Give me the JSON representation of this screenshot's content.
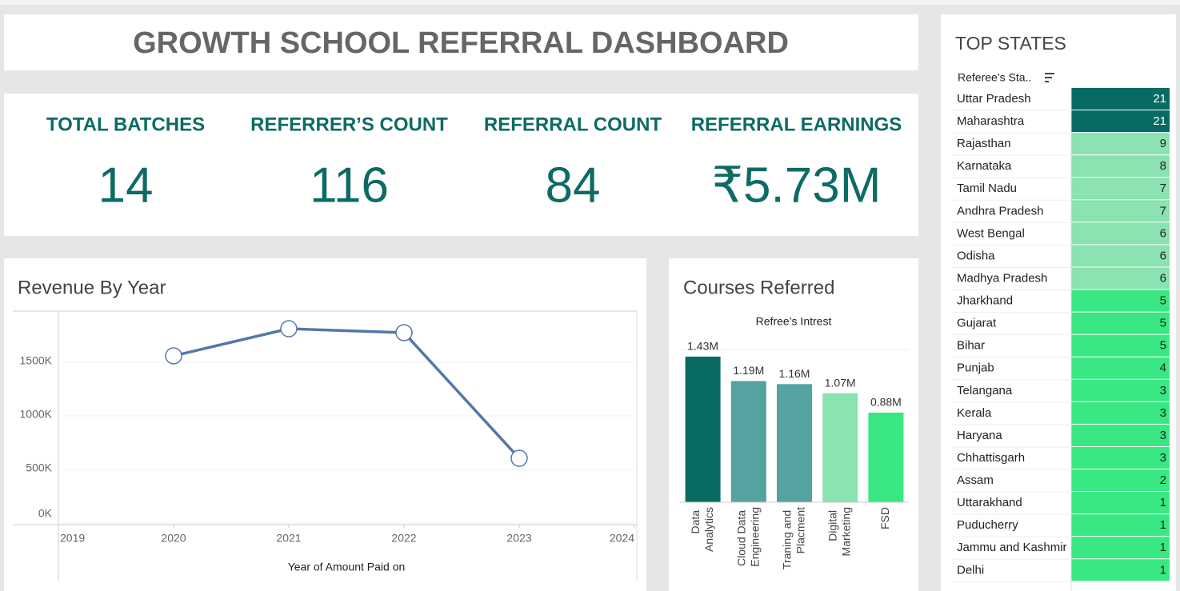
{
  "header": {
    "title": "GROWTH SCHOOL REFERRAL DASHBOARD"
  },
  "kpis": [
    {
      "label": "TOTAL BATCHES",
      "value": "14"
    },
    {
      "label": "REFERRER’S COUNT",
      "value": "116"
    },
    {
      "label": "REFERRAL COUNT",
      "value": "84"
    },
    {
      "label": "REFERRAL EARNINGS",
      "value": "₹5.73M"
    }
  ],
  "chart_data": [
    {
      "type": "line",
      "title": "Revenue By Year",
      "x_label": "Year of Amount Paid on",
      "x": [
        2020,
        2021,
        2022,
        2023
      ],
      "series": [
        {
          "name": "Revenue",
          "color": "#5577a8",
          "values": [
            1560000,
            1813000,
            1776000,
            604000
          ]
        }
      ],
      "xlim": [
        2019,
        2024
      ],
      "xticks": [
        2019,
        2020,
        2021,
        2022,
        2023,
        2024
      ],
      "ylim": [
        0,
        1970000
      ],
      "yticks": [
        {
          "value": 0,
          "label": "0K"
        },
        {
          "value": 500000,
          "label": "500K"
        },
        {
          "value": 1000000,
          "label": "1000K"
        },
        {
          "value": 1500000,
          "label": "1500K"
        }
      ],
      "grid": true
    },
    {
      "type": "bar",
      "title": "Courses Referred",
      "subtitle": "Refree’s Intrest",
      "categories": [
        "Data Analytics",
        "Cloud Data Engineering",
        "Traning and Placment",
        "Digital Marketing",
        "FSD"
      ],
      "values": [
        1430000,
        1190000,
        1160000,
        1070000,
        880000
      ],
      "value_labels": [
        "1.43M",
        "1.19M",
        "1.16M",
        "1.07M",
        "0.88M"
      ],
      "colors": [
        "#076b63",
        "#55a3a0",
        "#55a3a0",
        "#8ae3b0",
        "#39e882"
      ],
      "ylim": [
        0,
        1500000
      ]
    }
  ],
  "top_states": {
    "title": "TOP STATES",
    "column_header": "Referee’s Sta..",
    "rows": [
      {
        "name": "Uttar Pradesh",
        "value": 21,
        "color": "#076b63"
      },
      {
        "name": "Maharashtra",
        "value": 21,
        "color": "#076b63"
      },
      {
        "name": "Rajasthan",
        "value": 9,
        "color": "#8ae3b0"
      },
      {
        "name": "Karnataka",
        "value": 8,
        "color": "#8ae3b0"
      },
      {
        "name": "Tamil Nadu",
        "value": 7,
        "color": "#8ae3b0"
      },
      {
        "name": "Andhra Pradesh",
        "value": 7,
        "color": "#8ae3b0"
      },
      {
        "name": "West Bengal",
        "value": 6,
        "color": "#8ae3b0"
      },
      {
        "name": "Odisha",
        "value": 6,
        "color": "#8ae3b0"
      },
      {
        "name": "Madhya Pradesh",
        "value": 6,
        "color": "#8ae3b0"
      },
      {
        "name": "Jharkhand",
        "value": 5,
        "color": "#39e882"
      },
      {
        "name": "Gujarat",
        "value": 5,
        "color": "#39e882"
      },
      {
        "name": "Bihar",
        "value": 5,
        "color": "#39e882"
      },
      {
        "name": "Punjab",
        "value": 4,
        "color": "#39e882"
      },
      {
        "name": "Telangana",
        "value": 3,
        "color": "#39e882"
      },
      {
        "name": "Kerala",
        "value": 3,
        "color": "#39e882"
      },
      {
        "name": "Haryana",
        "value": 3,
        "color": "#39e882"
      },
      {
        "name": "Chhattisgarh",
        "value": 3,
        "color": "#39e882"
      },
      {
        "name": "Assam",
        "value": 2,
        "color": "#39e882"
      },
      {
        "name": "Uttarakhand",
        "value": 1,
        "color": "#39e882"
      },
      {
        "name": "Puducherry",
        "value": 1,
        "color": "#39e882"
      },
      {
        "name": "Jammu and Kashmir",
        "value": 1,
        "color": "#39e882"
      },
      {
        "name": "Delhi",
        "value": 1,
        "color": "#39e882"
      }
    ]
  }
}
